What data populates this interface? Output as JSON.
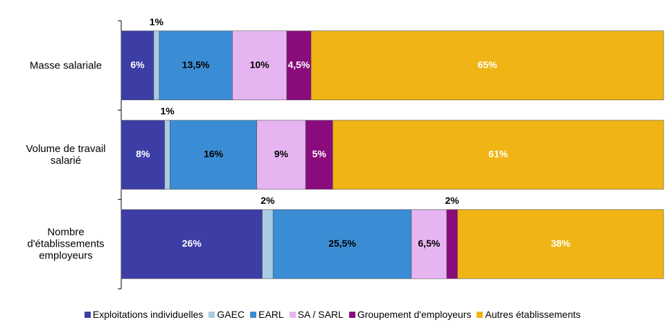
{
  "chart_data": {
    "type": "stacked_barh",
    "categories": [
      "Masse salariale",
      "Volume de travail salarié",
      "Nombre d'établissements employeurs"
    ],
    "xlim": [
      0,
      100
    ],
    "series": [
      {
        "name": "Exploitations individuelles",
        "color": "#3d3da6",
        "values": [
          6,
          8,
          26
        ],
        "value_labels": [
          "6%",
          "8%",
          "26%"
        ]
      },
      {
        "name": "GAEC",
        "color": "#a9cbe3",
        "values": [
          1,
          1,
          2
        ],
        "value_labels": [
          "1%",
          "1%",
          "2%"
        ]
      },
      {
        "name": "EARL",
        "color": "#3a8dd4",
        "values": [
          13.5,
          16,
          25.5
        ],
        "value_labels": [
          "13,5%",
          "16%",
          "25,5%"
        ]
      },
      {
        "name": "SA / SARL",
        "color": "#e7b4f2",
        "values": [
          10,
          9,
          6.5
        ],
        "value_labels": [
          "10%",
          "9%",
          "6,5%"
        ]
      },
      {
        "name": "Groupement d'employeurs",
        "color": "#8a0b7c",
        "values": [
          4.5,
          5,
          2
        ],
        "value_labels": [
          "4,5%",
          "5%",
          "2%"
        ]
      },
      {
        "name": "Autres établissements",
        "color": "#f0b515",
        "values": [
          65,
          61,
          38
        ],
        "value_labels": [
          "65%",
          "61%",
          "38%"
        ]
      }
    ]
  }
}
